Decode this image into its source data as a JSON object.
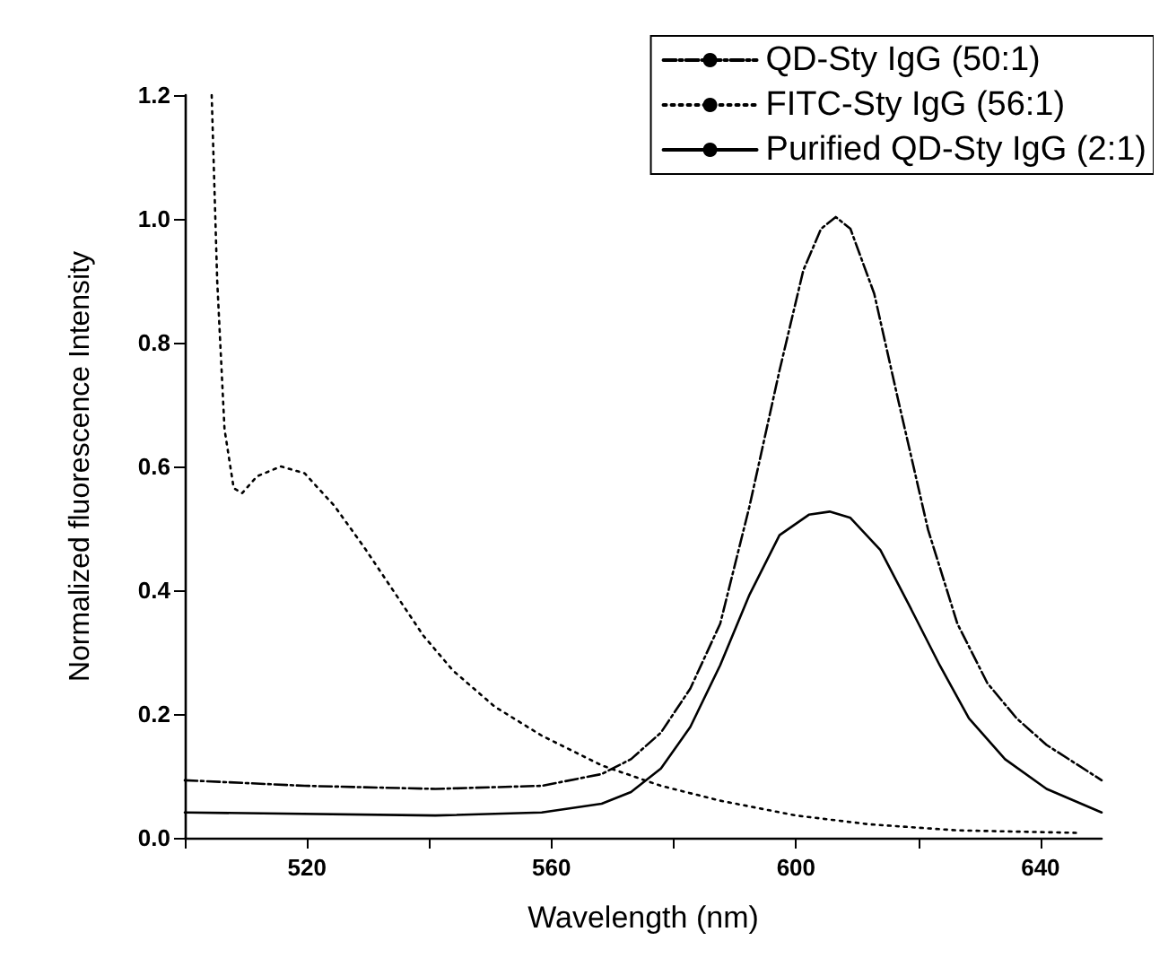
{
  "chart_data": {
    "type": "line",
    "xlabel": "Wavelength (nm)",
    "ylabel": "Normalized fluorescence Intensity",
    "xlim": [
      500,
      650
    ],
    "ylim": [
      0,
      1.2
    ],
    "xticks": [
      {
        "value": 500,
        "label": null
      },
      520,
      {
        "value": 540,
        "label": null
      },
      560,
      {
        "value": 580,
        "label": null
      },
      600,
      {
        "value": 620,
        "label": null
      },
      640
    ],
    "yticks": [
      {
        "value": 0,
        "label": "0.0"
      },
      0.2,
      0.4,
      0.6,
      0.8,
      {
        "value": 1,
        "label": "1.0"
      },
      1.2
    ],
    "grid": false,
    "legend": "top right",
    "marker": "none",
    "series": [
      {
        "name": "QD-Sty IgG (50:1)",
        "color": "#000000",
        "line_style": "dashdot",
        "x": [
          500,
          519.6,
          541,
          558.4,
          568.2,
          573,
          577.9,
          582.7,
          587.6,
          592.4,
          597.3,
          601.2,
          604.1,
          606.5,
          608.9,
          612.8,
          616.7,
          621.6,
          626.4,
          631.3,
          636.1,
          641,
          650
        ],
        "values": [
          0.093,
          0.084,
          0.079,
          0.084,
          0.103,
          0.127,
          0.17,
          0.241,
          0.346,
          0.536,
          0.755,
          0.917,
          0.984,
          1.003,
          0.984,
          0.879,
          0.708,
          0.498,
          0.346,
          0.25,
          0.193,
          0.15,
          0.093
        ]
      },
      {
        "name": "FITC-Sty IgG (56:1)",
        "color": "#000000",
        "line_style": "dotted",
        "x": [
          504.4,
          505.3,
          506.5,
          508,
          509.4,
          511.8,
          515.7,
          519.6,
          524.5,
          529.3,
          534.2,
          539,
          543.9,
          550.7,
          558.4,
          568.2,
          577.9,
          587.6,
          600,
          611.8,
          626.4,
          645.8
        ],
        "values": [
          1.2,
          0.9,
          0.66,
          0.565,
          0.557,
          0.584,
          0.6,
          0.589,
          0.536,
          0.47,
          0.398,
          0.327,
          0.27,
          0.212,
          0.165,
          0.117,
          0.084,
          0.06,
          0.036,
          0.022,
          0.012,
          0.008
        ]
      },
      {
        "name": "Purified QD-Sty IgG (2:1)",
        "color": "#000000",
        "line_style": "solid",
        "x": [
          500,
          541,
          558.4,
          568.2,
          573,
          577.9,
          582.7,
          587.6,
          592.4,
          597.3,
          602.1,
          605.5,
          608.9,
          613.8,
          618.6,
          623.5,
          628.3,
          634.2,
          641,
          650
        ],
        "values": [
          0.041,
          0.036,
          0.041,
          0.055,
          0.074,
          0.112,
          0.179,
          0.279,
          0.393,
          0.489,
          0.522,
          0.527,
          0.517,
          0.465,
          0.374,
          0.279,
          0.193,
          0.127,
          0.079,
          0.041
        ]
      }
    ]
  }
}
